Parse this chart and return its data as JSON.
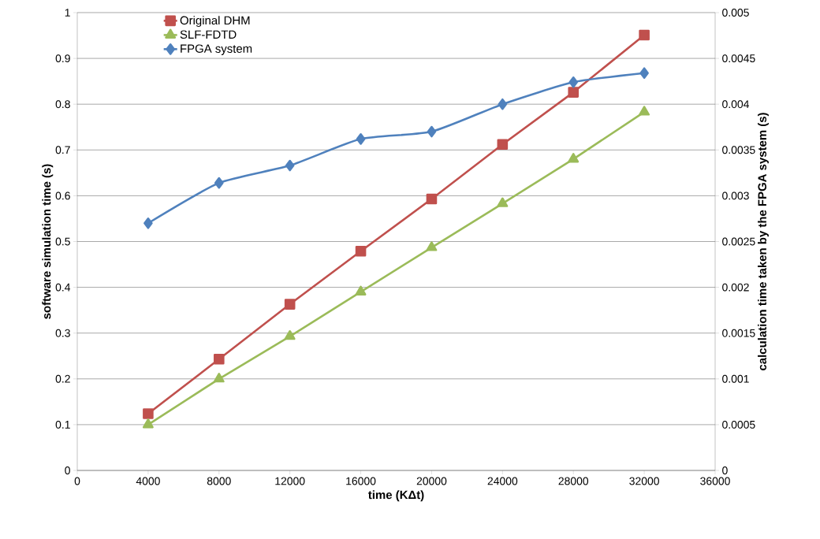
{
  "chart_data": {
    "type": "line",
    "xlabel": "time (KΔt)",
    "ylabel": "software simulation time (s)",
    "y2label": "calculation time taken by the FPGA system (s)",
    "x": [
      4000,
      8000,
      12000,
      16000,
      20000,
      24000,
      28000,
      32000
    ],
    "series": [
      {
        "name": "Original DHM",
        "color": "#c0504d",
        "marker": "square",
        "values": [
          0.124,
          0.243,
          0.363,
          0.479,
          0.593,
          0.712,
          0.826,
          0.951
        ]
      },
      {
        "name": "SLF-FDTD",
        "color": "#9bbb59",
        "marker": "triangle",
        "values": [
          0.1,
          0.2,
          0.293,
          0.39,
          0.487,
          0.583,
          0.68,
          0.783
        ]
      },
      {
        "name": "FPGA system",
        "color": "#4f81bd",
        "marker": "diamond",
        "axis": "y2",
        "values": [
          0.0027,
          0.00314,
          0.00333,
          0.00362,
          0.0037,
          0.004,
          0.00424,
          0.00434
        ]
      }
    ],
    "xlim": [
      0,
      36000
    ],
    "xticks": [
      0,
      4000,
      8000,
      12000,
      16000,
      20000,
      24000,
      28000,
      32000,
      36000
    ],
    "ylim": [
      0,
      1
    ],
    "yticks": [
      0,
      0.1,
      0.2,
      0.3,
      0.4,
      0.5,
      0.6,
      0.7,
      0.8,
      0.9,
      1
    ],
    "y2lim": [
      0,
      0.005
    ],
    "y2ticks": [
      0,
      0.0005,
      0.001,
      0.0015,
      0.002,
      0.0025,
      0.003,
      0.0035,
      0.004,
      0.0045,
      0.005
    ],
    "grid": "y",
    "legend": "top left"
  }
}
